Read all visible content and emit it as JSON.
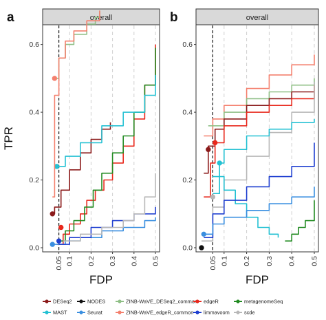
{
  "chart_data": [
    {
      "panel": "a",
      "type": "line",
      "title": "overall",
      "xlabel": "FDP",
      "ylabel": "TPR",
      "xlim": [
        0,
        0.5
      ],
      "ylim": [
        0,
        0.65
      ],
      "xticks": [
        "0.05",
        "0.1",
        "0.2",
        "0.3",
        "0.4",
        "0.5"
      ],
      "yticks": [
        "0.0",
        "0.2",
        "0.4",
        "0.6"
      ],
      "reference_line_x": 0.05,
      "grid": true,
      "series": [
        {
          "name": "DESeq2",
          "color": "#8b1a1a",
          "points": [
            [
              0.02,
              0.1
            ],
            [
              0.03,
              0.12
            ],
            [
              0.06,
              0.17
            ],
            [
              0.1,
              0.23
            ],
            [
              0.15,
              0.28
            ],
            [
              0.2,
              0.32
            ],
            [
              0.25,
              0.35
            ],
            [
              0.29,
              0.37
            ]
          ],
          "marker": [
            0.02,
            0.1
          ]
        },
        {
          "name": "edgeR",
          "color": "#e8281c",
          "points": [
            [
              0.04,
              0.01
            ],
            [
              0.07,
              0.04
            ],
            [
              0.1,
              0.07
            ],
            [
              0.15,
              0.1
            ],
            [
              0.18,
              0.14
            ],
            [
              0.22,
              0.17
            ],
            [
              0.26,
              0.2
            ],
            [
              0.3,
              0.25
            ],
            [
              0.35,
              0.3
            ],
            [
              0.4,
              0.38
            ],
            [
              0.45,
              0.48
            ],
            [
              0.5,
              0.6
            ]
          ],
          "marker": [
            0.06,
            0.06
          ]
        },
        {
          "name": "metagenomeSeq",
          "color": "#228b22",
          "points": [
            [
              0.04,
              0.02
            ],
            [
              0.08,
              0.05
            ],
            [
              0.12,
              0.08
            ],
            [
              0.17,
              0.12
            ],
            [
              0.21,
              0.17
            ],
            [
              0.25,
              0.22
            ],
            [
              0.3,
              0.28
            ],
            [
              0.35,
              0.33
            ],
            [
              0.4,
              0.4
            ],
            [
              0.45,
              0.48
            ],
            [
              0.5,
              0.59
            ]
          ]
        },
        {
          "name": "MAST",
          "color": "#25c1d3",
          "points": [
            [
              0.04,
              0.24
            ],
            [
              0.08,
              0.27
            ],
            [
              0.15,
              0.31
            ],
            [
              0.25,
              0.36
            ],
            [
              0.35,
              0.4
            ],
            [
              0.45,
              0.45
            ],
            [
              0.5,
              0.51
            ]
          ],
          "marker": [
            0.04,
            0.24
          ]
        },
        {
          "name": "ZINB-WaVE_DESeq2_common",
          "color": "#8fbf86",
          "points": [
            [
              0.03,
              0.5
            ],
            [
              0.05,
              0.56
            ],
            [
              0.08,
              0.6
            ],
            [
              0.12,
              0.63
            ],
            [
              0.18,
              0.66
            ],
            [
              0.22,
              0.68
            ],
            [
              0.24,
              0.7
            ]
          ]
        },
        {
          "name": "ZINB-WaVE_edgeR_common",
          "color": "#f4806e",
          "points": [
            [
              0.02,
              0.15
            ],
            [
              0.03,
              0.45
            ],
            [
              0.05,
              0.56
            ],
            [
              0.08,
              0.61
            ],
            [
              0.12,
              0.64
            ],
            [
              0.18,
              0.67
            ],
            [
              0.24,
              0.7
            ]
          ],
          "marker": [
            0.03,
            0.5
          ]
        },
        {
          "name": "Seurat",
          "color": "#3a8fe0",
          "points": [
            [
              0.02,
              0.01
            ],
            [
              0.08,
              0.02
            ],
            [
              0.15,
              0.03
            ],
            [
              0.25,
              0.05
            ],
            [
              0.35,
              0.06
            ],
            [
              0.45,
              0.08
            ],
            [
              0.5,
              0.09
            ]
          ],
          "marker": [
            0.02,
            0.01
          ]
        },
        {
          "name": "limmavoom",
          "color": "#1f3fd0",
          "points": [
            [
              0.05,
              0.01
            ],
            [
              0.1,
              0.03
            ],
            [
              0.2,
              0.06
            ],
            [
              0.3,
              0.08
            ],
            [
              0.4,
              0.1
            ],
            [
              0.5,
              0.12
            ]
          ],
          "marker": [
            0.05,
            0.02
          ]
        },
        {
          "name": "scde",
          "color": "#b8b8b8",
          "points": [
            [
              0.07,
              0.02
            ],
            [
              0.15,
              0.04
            ],
            [
              0.25,
              0.06
            ],
            [
              0.35,
              0.08
            ],
            [
              0.4,
              0.1
            ],
            [
              0.45,
              0.15
            ],
            [
              0.5,
              0.22
            ]
          ]
        }
      ]
    },
    {
      "panel": "b",
      "type": "line",
      "title": "overall",
      "xlabel": "FDP",
      "ylabel": "",
      "xlim": [
        0,
        0.5
      ],
      "ylim": [
        0,
        0.65
      ],
      "xticks": [
        "0.05",
        "0.1",
        "0.2",
        "0.3",
        "0.4",
        "0.5"
      ],
      "yticks": [
        "0.0",
        "0.2",
        "0.4",
        "0.6"
      ],
      "reference_line_x": 0.05,
      "grid": true,
      "series": [
        {
          "name": "ZINB-WaVE_edgeR_common",
          "color": "#f4806e",
          "points": [
            [
              0.01,
              0.33
            ],
            [
              0.05,
              0.38
            ],
            [
              0.1,
              0.42
            ],
            [
              0.2,
              0.47
            ],
            [
              0.3,
              0.51
            ],
            [
              0.4,
              0.54
            ],
            [
              0.5,
              0.57
            ]
          ]
        },
        {
          "name": "ZINB-WaVE_DESeq2_common",
          "color": "#8fbf86",
          "points": [
            [
              0.03,
              0.36
            ],
            [
              0.1,
              0.4
            ],
            [
              0.2,
              0.44
            ],
            [
              0.3,
              0.46
            ],
            [
              0.4,
              0.48
            ],
            [
              0.5,
              0.5
            ]
          ]
        },
        {
          "name": "DESeq2",
          "color": "#8b1a1a",
          "points": [
            [
              0.01,
              0.22
            ],
            [
              0.03,
              0.3
            ],
            [
              0.06,
              0.35
            ],
            [
              0.1,
              0.38
            ],
            [
              0.2,
              0.42
            ],
            [
              0.3,
              0.44
            ],
            [
              0.4,
              0.46
            ],
            [
              0.5,
              0.46
            ]
          ],
          "marker": [
            0.03,
            0.29
          ]
        },
        {
          "name": "edgeR",
          "color": "#e8281c",
          "points": [
            [
              0.01,
              0.15
            ],
            [
              0.04,
              0.25
            ],
            [
              0.06,
              0.31
            ],
            [
              0.1,
              0.36
            ],
            [
              0.2,
              0.4
            ],
            [
              0.3,
              0.42
            ],
            [
              0.4,
              0.44
            ],
            [
              0.5,
              0.48
            ]
          ],
          "marker": [
            0.06,
            0.31
          ]
        },
        {
          "name": "scde",
          "color": "#b8b8b8",
          "points": [
            [
              0.0,
              0.02
            ],
            [
              0.05,
              0.12
            ],
            [
              0.1,
              0.2
            ],
            [
              0.2,
              0.27
            ],
            [
              0.3,
              0.34
            ],
            [
              0.4,
              0.4
            ],
            [
              0.5,
              0.49
            ]
          ],
          "marker": [
            0.05,
            0.15
          ]
        },
        {
          "name": "MAST",
          "color": "#25c1d3",
          "points": [
            [
              0.05,
              0.16
            ],
            [
              0.08,
              0.25
            ],
            [
              0.1,
              0.29
            ],
            [
              0.2,
              0.33
            ],
            [
              0.3,
              0.35
            ],
            [
              0.4,
              0.37
            ],
            [
              0.5,
              0.38
            ]
          ],
          "marker": [
            0.08,
            0.25
          ]
        },
        {
          "name": "MAST",
          "color": "#25c1d3",
          "points": [
            [
              0.05,
              0.21
            ],
            [
              0.1,
              0.17
            ],
            [
              0.15,
              0.13
            ],
            [
              0.2,
              0.09
            ],
            [
              0.25,
              0.06
            ],
            [
              0.3,
              0.04
            ],
            [
              0.34,
              0.03
            ]
          ]
        },
        {
          "name": "limmavoom",
          "color": "#1f3fd0",
          "points": [
            [
              0.01,
              0.03
            ],
            [
              0.05,
              0.1
            ],
            [
              0.1,
              0.14
            ],
            [
              0.2,
              0.18
            ],
            [
              0.3,
              0.21
            ],
            [
              0.4,
              0.24
            ],
            [
              0.5,
              0.31
            ]
          ]
        },
        {
          "name": "Seurat",
          "color": "#3a8fe0",
          "points": [
            [
              0.01,
              0.04
            ],
            [
              0.05,
              0.07
            ],
            [
              0.1,
              0.09
            ],
            [
              0.2,
              0.11
            ],
            [
              0.3,
              0.13
            ],
            [
              0.4,
              0.15
            ],
            [
              0.5,
              0.18
            ]
          ],
          "marker": [
            0.01,
            0.04
          ]
        },
        {
          "name": "metagenomeSeq",
          "color": "#228b22",
          "points": [
            [
              0.37,
              0.02
            ],
            [
              0.4,
              0.04
            ],
            [
              0.43,
              0.06
            ],
            [
              0.46,
              0.08
            ],
            [
              0.5,
              0.14
            ]
          ]
        },
        {
          "name": "NODES",
          "color": "#111111",
          "points": [
            [
              0.0,
              0.0
            ]
          ],
          "marker": [
            0.0,
            0.0
          ]
        }
      ]
    }
  ],
  "legend": {
    "items": [
      {
        "label": "DESeq2",
        "color": "#8b1a1a"
      },
      {
        "label": "NODES",
        "color": "#111111"
      },
      {
        "label": "ZINB-WaVE_DESeq2_common",
        "color": "#8fbf86"
      },
      {
        "label": "edgeR",
        "color": "#e8281c"
      },
      {
        "label": "metagenomeSeq",
        "color": "#228b22"
      },
      {
        "label": "MAST",
        "color": "#25c1d3"
      },
      {
        "label": "Seurat",
        "color": "#3a8fe0"
      },
      {
        "label": "ZINB-WaVE_edgeR_common",
        "color": "#f4806e"
      },
      {
        "label": "limmavoom",
        "color": "#1f3fd0"
      },
      {
        "label": "scde",
        "color": "#b8b8b8"
      }
    ]
  }
}
